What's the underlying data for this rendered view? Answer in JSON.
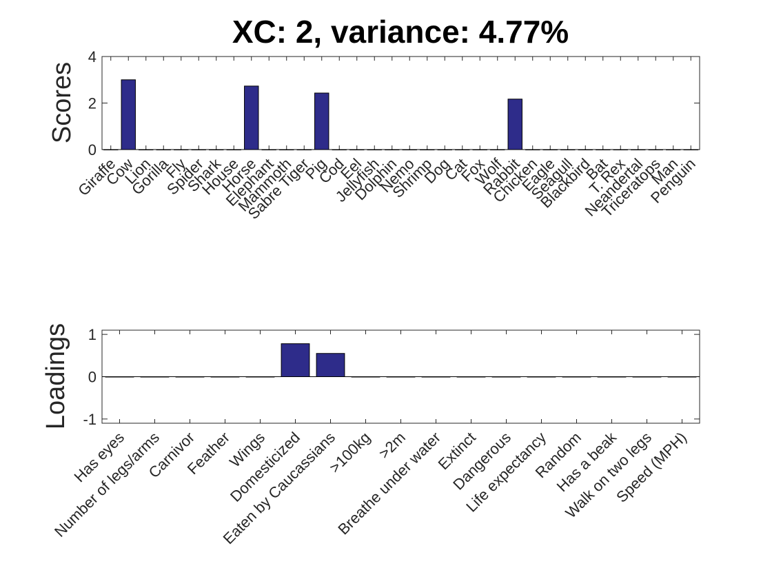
{
  "chart_data": [
    {
      "type": "bar",
      "title": "XC: 2, variance: 4.77%",
      "ylabel": "Scores",
      "ylim": [
        0,
        4
      ],
      "yticks": [
        "0",
        "2",
        "4"
      ],
      "categories": [
        "Giraffe",
        "Cow",
        "Lion",
        "Gorilla",
        "Fly",
        "Spider",
        "Shark",
        "House",
        "Horse",
        "Elephant",
        "Mammoth",
        "Sabre Tiger",
        "Pig",
        "Cod",
        "Eel",
        "Jellyfish",
        "Dolphin",
        "Nemo",
        "Shrimp",
        "Dog",
        "Cat",
        "Fox",
        "Wolf",
        "Rabbit",
        "Chicken",
        "Eagle",
        "Seagull",
        "Blackbird",
        "Bat",
        "T. Rex",
        "Neandertal",
        "Triceratops",
        "Man",
        "Penguin"
      ],
      "values": [
        0,
        3.0,
        0,
        0,
        0,
        0,
        0,
        0,
        2.73,
        0,
        0,
        0,
        2.43,
        0,
        0,
        0,
        0,
        0,
        0,
        0,
        0,
        0,
        0,
        2.17,
        0,
        0,
        0,
        0,
        0,
        0,
        0,
        0,
        0,
        0
      ],
      "color": "#2e2c8a",
      "grid": false
    },
    {
      "type": "bar",
      "title": "",
      "ylabel": "Loadings",
      "ylim": [
        -1.1,
        1.1
      ],
      "yticks": [
        "-1",
        "0",
        "1"
      ],
      "categories": [
        "Has eyes",
        "Number of legs/arms",
        "Carnivor",
        "Feather",
        "Wings",
        "Domesticized",
        "Eaten by Caucassians",
        ">100kg",
        ">2m",
        "Breathe under water",
        "Extinct",
        "Dangerous",
        "Life expectancy",
        "Random",
        "Has a beak",
        "Walk on two legs",
        "Speed (MPH)"
      ],
      "values": [
        0,
        0,
        0,
        0,
        0,
        0.78,
        0.55,
        0,
        0,
        0,
        0,
        0,
        0,
        0,
        0,
        0,
        0
      ],
      "color": "#2e2c8a",
      "grid": false
    }
  ]
}
